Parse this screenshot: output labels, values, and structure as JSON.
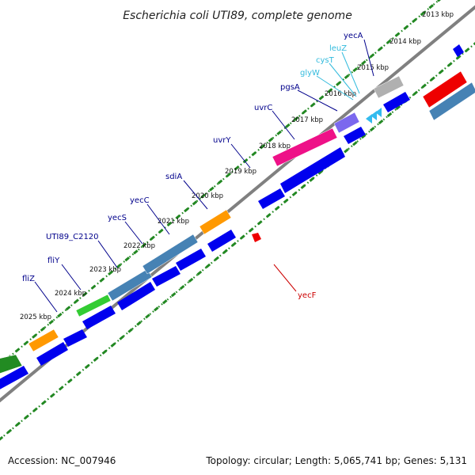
{
  "title": "Escherichia coli UTI89, complete genome",
  "footer": {
    "accession": "Accession: NC_007946",
    "summary": "Topology: circular; Length: 5,065,741 bp; Genes: 5,131"
  },
  "colors": {
    "backbone": "#808080",
    "cds": "#0000ee",
    "ticks": "#228822",
    "label_dark": "#00008b",
    "label_light": "#33bbdd",
    "label_red": "#cc0000",
    "orange": "#ff9900",
    "steelblue": "#4682b4",
    "green": "#33cc33",
    "darkgreen": "#228b22",
    "magenta": "#ee1188",
    "purple": "#7b68ee",
    "gray": "#b0b0b0",
    "red": "#ee0000",
    "cyan": "#33bbee"
  },
  "kbp_ticks": [
    {
      "label": "2013 kbp"
    },
    {
      "label": "2014 kbp"
    },
    {
      "label": "2015 kbp"
    },
    {
      "label": "2016 kbp"
    },
    {
      "label": "2017 kbp"
    },
    {
      "label": "2018 kbp"
    },
    {
      "label": "2019 kbp"
    },
    {
      "label": "2020 kbp"
    },
    {
      "label": "2021 kbp"
    },
    {
      "label": "2022 kbp"
    },
    {
      "label": "2023 kbp"
    },
    {
      "label": "2024 kbp"
    },
    {
      "label": "2025 kbp"
    }
  ],
  "gene_labels": [
    {
      "name": "yecA",
      "tone": "label_dark"
    },
    {
      "name": "leuZ",
      "tone": "label_light"
    },
    {
      "name": "cysT",
      "tone": "label_light"
    },
    {
      "name": "glyW",
      "tone": "label_light"
    },
    {
      "name": "pgsA",
      "tone": "label_dark"
    },
    {
      "name": "uvrC",
      "tone": "label_dark"
    },
    {
      "name": "uvrY",
      "tone": "label_dark"
    },
    {
      "name": "sdiA",
      "tone": "label_dark"
    },
    {
      "name": "yecC",
      "tone": "label_dark"
    },
    {
      "name": "yecS",
      "tone": "label_dark"
    },
    {
      "name": "UTI89_C2120",
      "tone": "label_dark"
    },
    {
      "name": "fliY",
      "tone": "label_dark"
    },
    {
      "name": "fliZ",
      "tone": "label_dark"
    },
    {
      "name": "yecF",
      "tone": "label_red"
    }
  ],
  "features": [
    {
      "name": "fliZ-feature",
      "color": "darkgreen"
    },
    {
      "name": "fliY-feature",
      "color": "orange"
    },
    {
      "name": "UTI89_C2120-feature",
      "color": "green"
    },
    {
      "name": "yecS-feature",
      "color": "steelblue"
    },
    {
      "name": "yecC-feature",
      "color": "steelblue"
    },
    {
      "name": "sdiA-feature",
      "color": "orange"
    },
    {
      "name": "uvrY-feature",
      "color": "magenta"
    },
    {
      "name": "uvrC-feature",
      "color": "purple"
    },
    {
      "name": "yecA-feature",
      "color": "gray"
    },
    {
      "name": "red-feature",
      "color": "red"
    },
    {
      "name": "steelblue-feature",
      "color": "steelblue"
    }
  ]
}
